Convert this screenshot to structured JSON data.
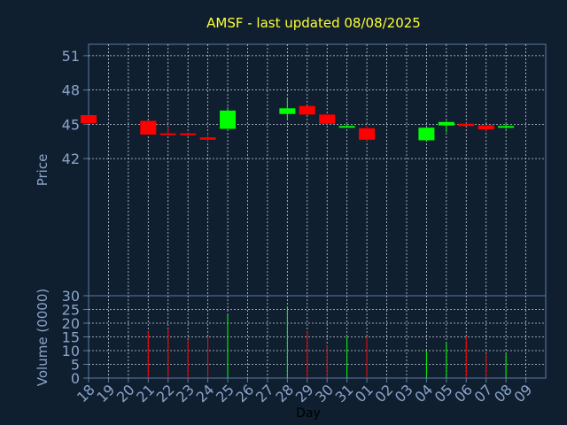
{
  "colors": {
    "background": "#0f1f30",
    "panel": "#0f1f30",
    "frame": "#5f7aa2",
    "grid": "#c8d0dc",
    "title": "#ffff33",
    "axis_text": "#8aa4c8",
    "xlabel_text": "#000000",
    "up": "#00ff00",
    "down": "#ff0000"
  },
  "chart_data": {
    "type": "candlestick",
    "title": "AMSF - last updated 08/08/2025",
    "ylabel": "Price",
    "volume_label": "Volume (0000)",
    "xlabel": "Day",
    "x_ticks": [
      "18",
      "19",
      "20",
      "21",
      "22",
      "23",
      "24",
      "25",
      "26",
      "27",
      "28",
      "29",
      "30",
      "31",
      "01",
      "02",
      "03",
      "04",
      "05",
      "06",
      "07",
      "08",
      "09"
    ],
    "price_ylim": [
      30,
      52
    ],
    "price_ticks": [
      42,
      45,
      48,
      51
    ],
    "volume_ylim": [
      0,
      30
    ],
    "volume_ticks": [
      0,
      5,
      10,
      15,
      20,
      25,
      30
    ],
    "grid": true,
    "candles": [
      {
        "day": "18",
        "open": 45.8,
        "high": 45.8,
        "low": 45.1,
        "close": 45.1,
        "volume": 0
      },
      {
        "day": "21",
        "open": 45.3,
        "high": 45.3,
        "low": 44.1,
        "close": 44.1,
        "volume": 17
      },
      {
        "day": "22",
        "open": 44.2,
        "high": 44.8,
        "low": 44.15,
        "close": 44.15,
        "volume": 18
      },
      {
        "day": "23",
        "open": 44.2,
        "high": 44.2,
        "low": 44.0,
        "close": 44.05,
        "volume": 14
      },
      {
        "day": "24",
        "open": 43.85,
        "high": 44.2,
        "low": 43.5,
        "close": 43.65,
        "volume": 15
      },
      {
        "day": "25",
        "open": 44.6,
        "high": 46.5,
        "low": 44.6,
        "close": 46.2,
        "volume": 23
      },
      {
        "day": "28",
        "open": 45.9,
        "high": 47.3,
        "low": 45.4,
        "close": 46.4,
        "volume": 26
      },
      {
        "day": "29",
        "open": 46.6,
        "high": 46.6,
        "low": 45.8,
        "close": 45.85,
        "volume": 17
      },
      {
        "day": "30",
        "open": 45.85,
        "high": 45.85,
        "low": 45.0,
        "close": 45.05,
        "volume": 12
      },
      {
        "day": "31",
        "open": 44.75,
        "high": 45.0,
        "low": 44.75,
        "close": 44.85,
        "volume": 15
      },
      {
        "day": "01",
        "open": 44.65,
        "high": 44.9,
        "low": 43.5,
        "close": 43.65,
        "volume": 15
      },
      {
        "day": "04",
        "open": 43.6,
        "high": 44.7,
        "low": 43.6,
        "close": 44.7,
        "volume": 10
      },
      {
        "day": "05",
        "open": 44.9,
        "high": 45.3,
        "low": 44.3,
        "close": 45.2,
        "volume": 13
      },
      {
        "day": "06",
        "open": 45.05,
        "high": 45.1,
        "low": 44.85,
        "close": 44.85,
        "volume": 15
      },
      {
        "day": "07",
        "open": 44.9,
        "high": 44.9,
        "low": 44.35,
        "close": 44.55,
        "volume": 9
      },
      {
        "day": "08",
        "open": 44.7,
        "high": 45.1,
        "low": 44.6,
        "close": 44.85,
        "volume": 9
      }
    ]
  }
}
